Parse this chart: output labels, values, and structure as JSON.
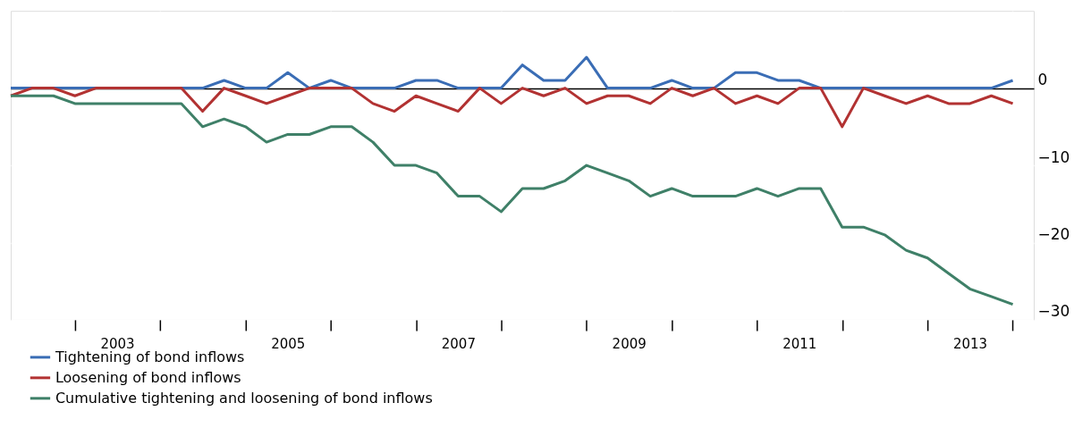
{
  "chart_data": {
    "type": "line",
    "x": [
      "2002-04",
      "2002-07",
      "2002-10",
      "2003-01",
      "2003-04",
      "2003-07",
      "2003-10",
      "2004-01",
      "2004-04",
      "2004-07",
      "2004-10",
      "2005-01",
      "2005-04",
      "2005-07",
      "2005-10",
      "2006-01",
      "2006-04",
      "2006-07",
      "2006-10",
      "2007-01",
      "2007-04",
      "2007-07",
      "2007-10",
      "2008-01",
      "2008-04",
      "2008-07",
      "2008-10",
      "2009-01",
      "2009-04",
      "2009-07",
      "2009-10",
      "2010-01",
      "2010-04",
      "2010-07",
      "2010-10",
      "2011-01",
      "2011-04",
      "2011-07",
      "2011-10",
      "2012-01",
      "2012-04",
      "2012-07",
      "2012-10",
      "2013-01",
      "2013-04",
      "2013-07",
      "2013-10",
      "2014-01"
    ],
    "series": [
      {
        "name": "Tightening of bond inflows",
        "color": "#3a6db5",
        "values": [
          0,
          0,
          0,
          0,
          0,
          0,
          0,
          0,
          0,
          0,
          1,
          0,
          0,
          2,
          0,
          1,
          0,
          0,
          0,
          1,
          1,
          0,
          0,
          0,
          3,
          1,
          1,
          4,
          0,
          0,
          0,
          1,
          0,
          0,
          2,
          2,
          1,
          1,
          0,
          0,
          0,
          0,
          0,
          0,
          0,
          0,
          0,
          1
        ]
      },
      {
        "name": "Loosening of bond inflows",
        "color": "#b23232",
        "values": [
          -1,
          0,
          0,
          -1,
          0,
          0,
          0,
          0,
          0,
          -3,
          0,
          -1,
          -2,
          -1,
          0,
          0,
          0,
          -2,
          -3,
          -1,
          -2,
          -3,
          0,
          -2,
          0,
          -1,
          0,
          -2,
          -1,
          -1,
          -2,
          0,
          -1,
          0,
          -2,
          -1,
          -2,
          0,
          0,
          -5,
          0,
          -1,
          -2,
          -1,
          -2,
          -2,
          -1,
          -2
        ]
      },
      {
        "name": "Cumulative tightening and loosening of bond inflows",
        "color": "#3f8068",
        "values": [
          -1,
          -1,
          -1,
          -2,
          -2,
          -2,
          -2,
          -2,
          -2,
          -5,
          -4,
          -5,
          -7,
          -6,
          -6,
          -5,
          -5,
          -7,
          -10,
          -10,
          -11,
          -14,
          -14,
          -16,
          -13,
          -13,
          -12,
          -10,
          -11,
          -12,
          -14,
          -13,
          -14,
          -14,
          -14,
          -13,
          -14,
          -13,
          -13,
          -18,
          -18,
          -19,
          -21,
          -22,
          -24,
          -26,
          -27,
          -28
        ]
      }
    ],
    "xlim": [
      "2002-04",
      "2014-04"
    ],
    "xticks": [
      {
        "value": "2003-01",
        "label": null
      },
      {
        "value": "2004-01",
        "label": null
      },
      {
        "value": "2005-01",
        "label": null
      },
      {
        "value": "2006-01",
        "label": null
      },
      {
        "value": "2007-01",
        "label": null
      },
      {
        "value": "2008-01",
        "label": null
      },
      {
        "value": "2009-01",
        "label": null
      },
      {
        "value": "2010-01",
        "label": null
      },
      {
        "value": "2011-01",
        "label": null
      },
      {
        "value": "2012-01",
        "label": null
      },
      {
        "value": "2013-01",
        "label": null
      },
      {
        "value": "2014-01",
        "label": null
      },
      {
        "value": "2003-07",
        "label": "2003"
      },
      {
        "value": "2005-07",
        "label": "2005"
      },
      {
        "value": "2007-07",
        "label": "2007"
      },
      {
        "value": "2009-07",
        "label": "2009"
      },
      {
        "value": "2011-07",
        "label": "2011"
      },
      {
        "value": "2013-07",
        "label": "2013"
      }
    ],
    "ylim": [
      -30,
      10
    ],
    "yticks": [
      {
        "value": 0,
        "label": "0"
      },
      {
        "value": -10,
        "label": "−10"
      },
      {
        "value": -20,
        "label": "−20"
      },
      {
        "value": -30,
        "label": "−30"
      }
    ],
    "grid": true,
    "legend": "bottom",
    "marker": "none",
    "line_style": "solid"
  }
}
